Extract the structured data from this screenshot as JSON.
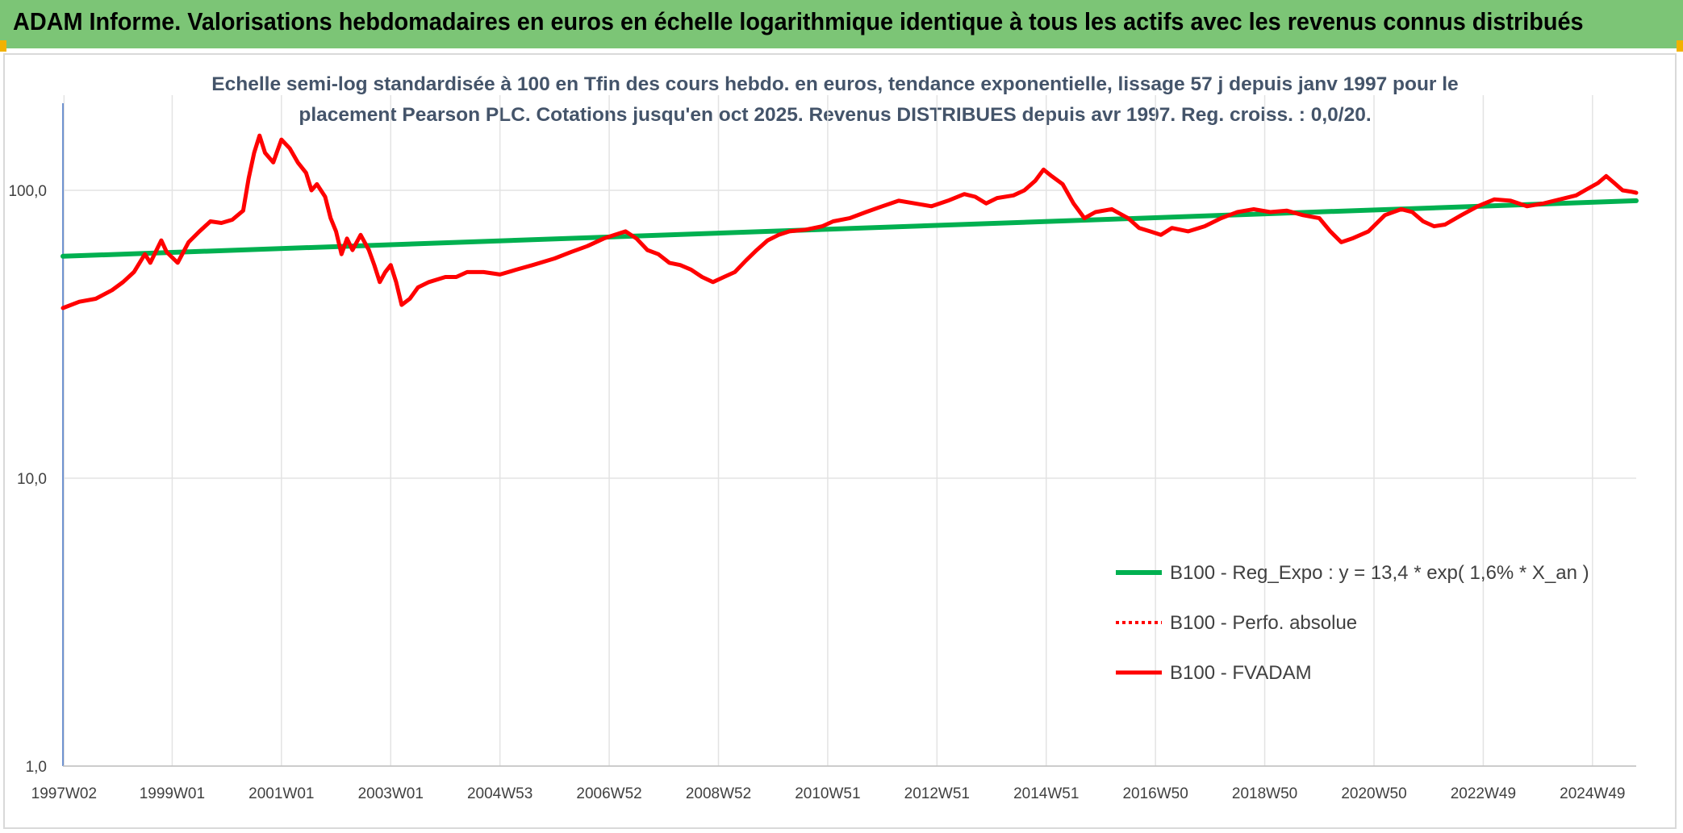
{
  "banner": {
    "title": "ADAM Informe. Valorisations hebdomadaires en euros en échelle logarithmique identique à tous les actifs avec les revenus connus distribués",
    "color": "#7cc576"
  },
  "subtitle": {
    "line1": "Echelle semi-log standardisée à 100 en Tfin des cours hebdo. en euros, tendance exponentielle, lissage 57 j depuis janv 1997 pour le",
    "line2": "placement Pearson PLC. Cotations jusqu'en oct 2025. Revenus DISTRIBUES depuis avr 1997. Reg. croiss. : 0,0/20."
  },
  "chart_data": {
    "type": "line",
    "y_scale": "log",
    "ylim": [
      1,
      180
    ],
    "y_ticks": [
      {
        "value": 1,
        "label": "1,0"
      },
      {
        "value": 10,
        "label": "10,0"
      },
      {
        "value": 100,
        "label": "100,0"
      }
    ],
    "x_range": [
      1997.0,
      2025.8
    ],
    "x_ticks": [
      {
        "value": 1997.02,
        "label": "1997W02"
      },
      {
        "value": 1999.0,
        "label": "1999W01"
      },
      {
        "value": 2001.0,
        "label": "2001W01"
      },
      {
        "value": 2003.0,
        "label": "2003W01"
      },
      {
        "value": 2005.0,
        "label": "2004W53"
      },
      {
        "value": 2007.0,
        "label": "2006W52"
      },
      {
        "value": 2009.0,
        "label": "2008W52"
      },
      {
        "value": 2011.0,
        "label": "2010W51"
      },
      {
        "value": 2013.0,
        "label": "2012W51"
      },
      {
        "value": 2015.0,
        "label": "2014W51"
      },
      {
        "value": 2017.0,
        "label": "2016W50"
      },
      {
        "value": 2019.0,
        "label": "2018W50"
      },
      {
        "value": 2021.0,
        "label": "2020W50"
      },
      {
        "value": 2023.0,
        "label": "2022W49"
      },
      {
        "value": 2025.0,
        "label": "2024W49"
      }
    ],
    "grid": true,
    "legend_position": "bottom-right",
    "series": [
      {
        "name": "B100 - Reg_Expo : y = 13,4 * exp( 1,6% *  X_an )",
        "color": "#00b050",
        "style": "solid",
        "points": [
          [
            1997.0,
            59
          ],
          [
            2025.8,
            92
          ]
        ]
      },
      {
        "name": "B100 - Perfo. absolue",
        "color": "#ff0000",
        "style": "dotted",
        "points": []
      },
      {
        "name": "B100 - FVADAM",
        "color": "#ff0000",
        "style": "solid",
        "points": [
          [
            1997.0,
            39
          ],
          [
            1997.3,
            41
          ],
          [
            1997.6,
            42
          ],
          [
            1997.9,
            45
          ],
          [
            1998.1,
            48
          ],
          [
            1998.3,
            52
          ],
          [
            1998.5,
            60
          ],
          [
            1998.6,
            56
          ],
          [
            1998.8,
            67
          ],
          [
            1998.9,
            61
          ],
          [
            1999.1,
            56
          ],
          [
            1999.3,
            66
          ],
          [
            1999.5,
            72
          ],
          [
            1999.7,
            78
          ],
          [
            1999.9,
            77
          ],
          [
            2000.1,
            79
          ],
          [
            2000.3,
            85
          ],
          [
            2000.4,
            110
          ],
          [
            2000.5,
            135
          ],
          [
            2000.6,
            155
          ],
          [
            2000.7,
            135
          ],
          [
            2000.85,
            125
          ],
          [
            2001.0,
            150
          ],
          [
            2001.15,
            140
          ],
          [
            2001.3,
            125
          ],
          [
            2001.45,
            115
          ],
          [
            2001.55,
            100
          ],
          [
            2001.65,
            105
          ],
          [
            2001.8,
            95
          ],
          [
            2001.9,
            80
          ],
          [
            2002.0,
            72
          ],
          [
            2002.1,
            60
          ],
          [
            2002.2,
            68
          ],
          [
            2002.3,
            62
          ],
          [
            2002.45,
            70
          ],
          [
            2002.6,
            62
          ],
          [
            2002.7,
            55
          ],
          [
            2002.8,
            48
          ],
          [
            2002.9,
            52
          ],
          [
            2003.0,
            55
          ],
          [
            2003.1,
            48
          ],
          [
            2003.2,
            40
          ],
          [
            2003.35,
            42
          ],
          [
            2003.5,
            46
          ],
          [
            2003.7,
            48
          ],
          [
            2004.0,
            50
          ],
          [
            2004.2,
            50
          ],
          [
            2004.4,
            52
          ],
          [
            2004.7,
            52
          ],
          [
            2005.0,
            51
          ],
          [
            2005.3,
            53
          ],
          [
            2005.6,
            55
          ],
          [
            2006.0,
            58
          ],
          [
            2006.3,
            61
          ],
          [
            2006.6,
            64
          ],
          [
            2006.9,
            68
          ],
          [
            2007.1,
            70
          ],
          [
            2007.3,
            72
          ],
          [
            2007.5,
            68
          ],
          [
            2007.7,
            62
          ],
          [
            2007.9,
            60
          ],
          [
            2008.1,
            56
          ],
          [
            2008.3,
            55
          ],
          [
            2008.5,
            53
          ],
          [
            2008.7,
            50
          ],
          [
            2008.9,
            48
          ],
          [
            2009.1,
            50
          ],
          [
            2009.3,
            52
          ],
          [
            2009.5,
            57
          ],
          [
            2009.7,
            62
          ],
          [
            2009.9,
            67
          ],
          [
            2010.1,
            70
          ],
          [
            2010.3,
            72
          ],
          [
            2010.6,
            73
          ],
          [
            2010.9,
            75
          ],
          [
            2011.1,
            78
          ],
          [
            2011.4,
            80
          ],
          [
            2011.7,
            84
          ],
          [
            2012.0,
            88
          ],
          [
            2012.3,
            92
          ],
          [
            2012.6,
            90
          ],
          [
            2012.9,
            88
          ],
          [
            2013.2,
            92
          ],
          [
            2013.5,
            97
          ],
          [
            2013.7,
            95
          ],
          [
            2013.9,
            90
          ],
          [
            2014.1,
            94
          ],
          [
            2014.4,
            96
          ],
          [
            2014.6,
            100
          ],
          [
            2014.8,
            108
          ],
          [
            2014.95,
            118
          ],
          [
            2015.1,
            112
          ],
          [
            2015.3,
            105
          ],
          [
            2015.5,
            90
          ],
          [
            2015.7,
            80
          ],
          [
            2015.9,
            84
          ],
          [
            2016.2,
            86
          ],
          [
            2016.5,
            80
          ],
          [
            2016.7,
            74
          ],
          [
            2016.9,
            72
          ],
          [
            2017.1,
            70
          ],
          [
            2017.3,
            74
          ],
          [
            2017.6,
            72
          ],
          [
            2017.9,
            75
          ],
          [
            2018.2,
            80
          ],
          [
            2018.5,
            84
          ],
          [
            2018.8,
            86
          ],
          [
            2019.1,
            84
          ],
          [
            2019.4,
            85
          ],
          [
            2019.7,
            82
          ],
          [
            2020.0,
            80
          ],
          [
            2020.2,
            72
          ],
          [
            2020.4,
            66
          ],
          [
            2020.6,
            68
          ],
          [
            2020.9,
            72
          ],
          [
            2021.2,
            82
          ],
          [
            2021.5,
            86
          ],
          [
            2021.7,
            84
          ],
          [
            2021.9,
            78
          ],
          [
            2022.1,
            75
          ],
          [
            2022.3,
            76
          ],
          [
            2022.6,
            82
          ],
          [
            2022.9,
            88
          ],
          [
            2023.2,
            93
          ],
          [
            2023.5,
            92
          ],
          [
            2023.8,
            88
          ],
          [
            2024.1,
            90
          ],
          [
            2024.4,
            93
          ],
          [
            2024.7,
            96
          ],
          [
            2024.9,
            101
          ],
          [
            2025.1,
            106
          ],
          [
            2025.25,
            112
          ],
          [
            2025.4,
            106
          ],
          [
            2025.55,
            100
          ],
          [
            2025.7,
            99
          ],
          [
            2025.8,
            98
          ]
        ]
      }
    ]
  }
}
